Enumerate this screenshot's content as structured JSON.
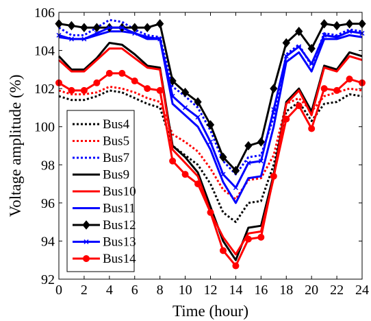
{
  "chart_data": {
    "type": "line",
    "title": "",
    "xlabel": "Time (hour)",
    "ylabel": "Voltage amplitude (%)",
    "xlim": [
      0,
      24
    ],
    "ylim": [
      92,
      106
    ],
    "xticks": [
      0,
      2,
      4,
      6,
      8,
      10,
      12,
      14,
      16,
      18,
      20,
      22,
      24
    ],
    "yticks": [
      92,
      94,
      96,
      98,
      100,
      102,
      104,
      106
    ],
    "grid": false,
    "legend_position": "lower-left",
    "x": [
      0,
      1,
      2,
      3,
      4,
      5,
      6,
      7,
      8,
      9,
      10,
      11,
      12,
      13,
      14,
      15,
      16,
      17,
      18,
      19,
      20,
      21,
      22,
      23,
      24
    ],
    "series": [
      {
        "name": "Bus4",
        "color": "#000000",
        "line_style": "dotted",
        "marker": "none",
        "values": [
          101.6,
          101.4,
          101.4,
          101.6,
          101.9,
          101.8,
          101.5,
          101.2,
          101.0,
          99.0,
          98.5,
          98.0,
          97.0,
          95.5,
          95.0,
          96.0,
          96.1,
          98.0,
          100.8,
          101.3,
          100.3,
          101.2,
          101.3,
          101.7,
          101.6
        ]
      },
      {
        "name": "Bus5",
        "color": "#ff0000",
        "line_style": "dotted",
        "marker": "none",
        "values": [
          101.9,
          101.7,
          101.7,
          101.8,
          102.1,
          102.0,
          101.8,
          101.5,
          101.3,
          99.6,
          99.2,
          98.7,
          97.8,
          96.7,
          96.2,
          97.2,
          97.3,
          98.5,
          101.2,
          101.5,
          100.8,
          101.6,
          101.8,
          102.0,
          101.9
        ]
      },
      {
        "name": "Bus7",
        "color": "#0000ff",
        "line_style": "dotted",
        "marker": "none",
        "values": [
          105.2,
          104.8,
          104.8,
          105.2,
          105.6,
          105.5,
          105.1,
          104.8,
          104.7,
          102.1,
          101.6,
          101.0,
          99.8,
          98.2,
          97.5,
          98.4,
          98.5,
          100.5,
          103.8,
          104.3,
          103.2,
          104.9,
          104.8,
          105.1,
          105.0
        ]
      },
      {
        "name": "Bus9",
        "color": "#000000",
        "line_style": "solid",
        "marker": "none",
        "values": [
          103.7,
          103.0,
          103.0,
          103.6,
          104.4,
          104.3,
          103.8,
          103.2,
          103.1,
          99.0,
          98.4,
          97.6,
          95.8,
          94.0,
          93.0,
          94.7,
          94.8,
          97.5,
          101.3,
          102.0,
          100.8,
          103.2,
          103.0,
          103.9,
          103.7
        ]
      },
      {
        "name": "Bus10",
        "color": "#ff0000",
        "line_style": "solid",
        "marker": "none",
        "values": [
          103.5,
          102.9,
          102.9,
          103.5,
          104.1,
          104.1,
          103.6,
          103.1,
          103.0,
          98.8,
          98.1,
          97.4,
          95.5,
          94.2,
          93.3,
          94.4,
          94.5,
          97.3,
          101.2,
          101.9,
          100.6,
          103.1,
          102.9,
          103.7,
          103.5
        ]
      },
      {
        "name": "Bus11",
        "color": "#0000ff",
        "line_style": "solid",
        "marker": "none",
        "values": [
          104.7,
          104.6,
          104.6,
          104.8,
          105.0,
          105.0,
          104.9,
          104.6,
          104.6,
          101.2,
          100.6,
          100.0,
          98.8,
          97.1,
          96.0,
          97.3,
          97.4,
          100.0,
          103.4,
          103.9,
          102.9,
          104.6,
          104.6,
          104.8,
          104.7
        ]
      },
      {
        "name": "Bus12",
        "color": "#000000",
        "line_style": "solid",
        "marker": "diamond",
        "values": [
          105.4,
          105.3,
          105.2,
          105.2,
          105.2,
          105.2,
          105.2,
          105.2,
          105.4,
          102.4,
          101.8,
          101.3,
          100.1,
          98.4,
          97.7,
          99.0,
          99.2,
          102.0,
          104.4,
          105.0,
          104.1,
          105.4,
          105.3,
          105.4,
          105.4
        ]
      },
      {
        "name": "Bus13",
        "color": "#0000ff",
        "line_style": "solid",
        "marker": "x",
        "values": [
          104.8,
          104.6,
          104.6,
          104.9,
          105.2,
          105.2,
          104.9,
          104.7,
          104.6,
          101.6,
          101.0,
          100.5,
          99.2,
          97.5,
          96.8,
          98.1,
          98.2,
          100.9,
          103.7,
          104.2,
          103.3,
          104.8,
          104.7,
          105.0,
          104.9
        ]
      },
      {
        "name": "Bus14",
        "color": "#ff0000",
        "line_style": "solid",
        "marker": "circle",
        "values": [
          102.3,
          101.9,
          101.9,
          102.3,
          102.8,
          102.8,
          102.4,
          102.0,
          101.9,
          98.2,
          97.5,
          97.0,
          95.5,
          93.5,
          92.7,
          94.1,
          94.2,
          97.4,
          100.4,
          101.1,
          99.9,
          102.0,
          101.9,
          102.5,
          102.3
        ]
      }
    ]
  }
}
